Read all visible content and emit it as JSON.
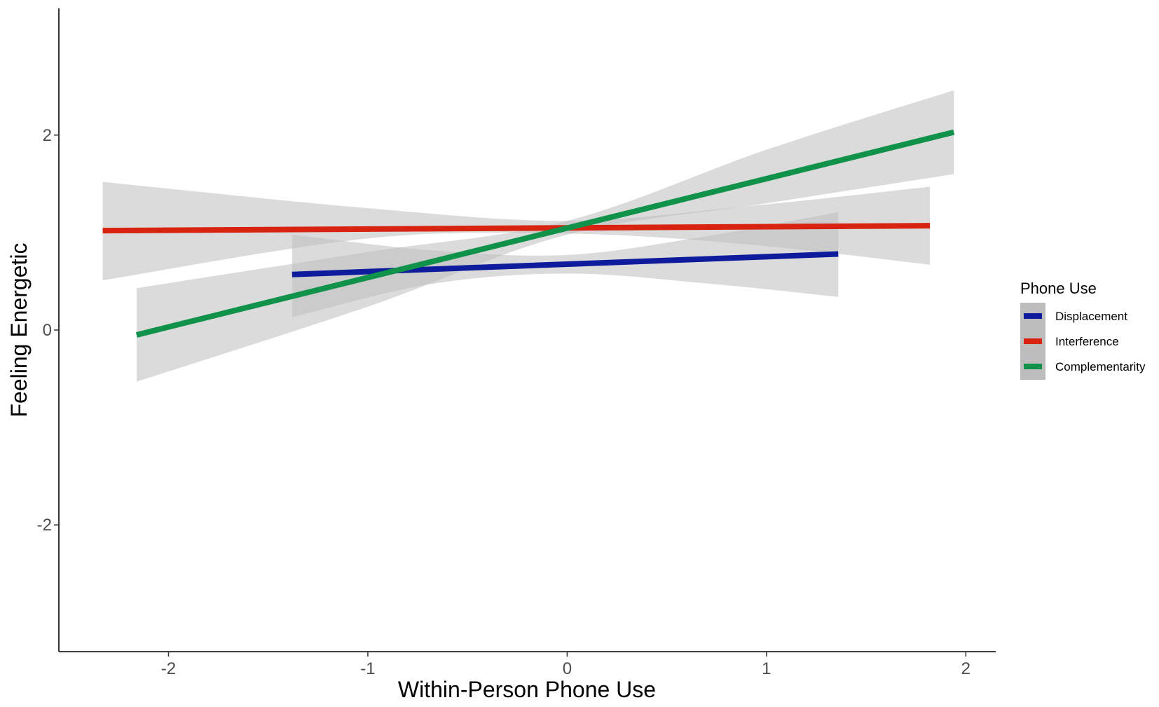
{
  "chart_data": {
    "type": "line",
    "xlabel": "Within-Person Phone Use",
    "ylabel": "Feeling Energetic",
    "xlim": [
      -2.55,
      2.15
    ],
    "ylim": [
      -3.3,
      3.3
    ],
    "x_ticks": [
      -2,
      -1,
      0,
      1,
      2
    ],
    "x_tick_labels": [
      "-2",
      "-1",
      "0",
      "1",
      "2"
    ],
    "y_ticks": [
      -2,
      0,
      2
    ],
    "y_tick_labels": [
      "-2",
      "0",
      "2"
    ],
    "grid": false,
    "legend": {
      "title": "Phone Use",
      "position": "right",
      "entries": [
        "Displacement",
        "Interference",
        "Complementarity"
      ]
    },
    "confidence_band_color": "#bdbdbd",
    "series": [
      {
        "name": "Displacement",
        "color": "#0d1b9c",
        "x": [
          -1.38,
          1.36
        ],
        "y": [
          0.57,
          0.78
        ],
        "band": {
          "x": [
            -1.38,
            -0.69,
            0.0,
            0.69,
            1.36
          ],
          "lower": [
            0.13,
            0.47,
            0.58,
            0.48,
            0.34
          ],
          "upper": [
            0.98,
            0.82,
            0.77,
            0.96,
            1.21
          ]
        }
      },
      {
        "name": "Interference",
        "color": "#d7230f",
        "x": [
          -2.33,
          1.82
        ],
        "y": [
          1.02,
          1.07
        ],
        "band": {
          "x": [
            -2.33,
            -1.0,
            0.0,
            0.9,
            1.82
          ],
          "lower": [
            0.51,
            0.94,
            0.99,
            0.88,
            0.67
          ],
          "upper": [
            1.52,
            1.25,
            1.12,
            1.27,
            1.47
          ]
        }
      },
      {
        "name": "Complementarity",
        "color": "#10924a",
        "x": [
          -2.16,
          1.94
        ],
        "y": [
          -0.05,
          2.03
        ],
        "band": {
          "x": [
            -2.16,
            -1.0,
            0.0,
            1.0,
            1.94
          ],
          "lower": [
            -0.53,
            0.24,
            0.98,
            1.3,
            1.6
          ],
          "upper": [
            0.43,
            0.8,
            1.12,
            1.85,
            2.46
          ]
        }
      }
    ]
  }
}
